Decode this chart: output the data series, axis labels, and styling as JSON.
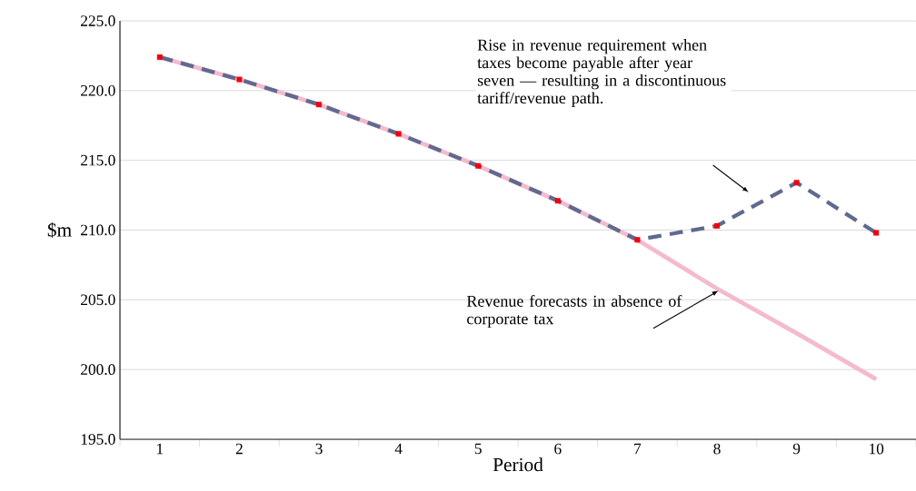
{
  "chart_data": {
    "type": "line",
    "xlabel": "Period",
    "ylabel": "$m",
    "categories": [
      "1",
      "2",
      "3",
      "4",
      "5",
      "6",
      "7",
      "8",
      "9",
      "10"
    ],
    "series": [
      {
        "color": "#5f6a8e",
        "line_style": "dashed",
        "marker": "square",
        "values": [
          222.4,
          220.8,
          219.0,
          216.9,
          214.6,
          212.1,
          209.3,
          210.3,
          213.4,
          209.8
        ]
      },
      {
        "color": "#f4bace",
        "line_style": "solid",
        "values": [
          222.4,
          220.8,
          219.0,
          216.9,
          214.6,
          212.1,
          209.3,
          205.8,
          202.6,
          199.3
        ]
      }
    ],
    "ylim": [
      195,
      225
    ],
    "yticks": [
      {
        "value": 195,
        "label": "195.0"
      },
      {
        "value": 200,
        "label": "200.0"
      },
      {
        "value": 205,
        "label": "205.0"
      },
      {
        "value": 210,
        "label": "210.0"
      },
      {
        "value": 215,
        "label": "215.0"
      },
      {
        "value": 220,
        "label": "220.0"
      },
      {
        "value": 225,
        "label": "225.0"
      }
    ],
    "grid": "y",
    "annotations": [
      "Rise in revenue requirement when taxes become payable after year seven — resulting in a discontinuous tariff/revenue path.",
      "Revenue forecasts in absence of corporate tax"
    ]
  }
}
